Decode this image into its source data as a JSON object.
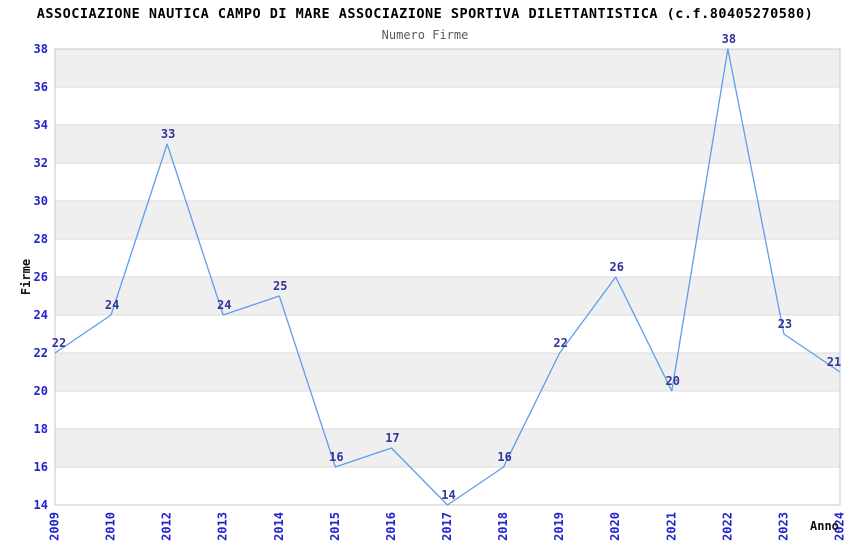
{
  "chart_data": {
    "type": "line",
    "title": "ASSOCIAZIONE NAUTICA CAMPO DI MARE ASSOCIAZIONE SPORTIVA DILETTANTISTICA (c.f.80405270580)",
    "subtitle": "Numero Firme",
    "xlabel": "Anno",
    "ylabel": "Firme",
    "categories": [
      "2009",
      "2010",
      "2012",
      "2013",
      "2014",
      "2015",
      "2016",
      "2017",
      "2018",
      "2019",
      "2020",
      "2021",
      "2022",
      "2023",
      "2024"
    ],
    "series": [
      {
        "name": "Numero Firme",
        "values": [
          22,
          24,
          33,
          24,
          25,
          16,
          17,
          14,
          16,
          22,
          26,
          20,
          38,
          23,
          21
        ]
      }
    ],
    "point_labels": [
      "22",
      "24",
      "33",
      "24",
      "25",
      "16",
      "17",
      "14",
      "16",
      "22",
      "26",
      "20",
      "38",
      "23",
      "21"
    ],
    "ylim": [
      14,
      38
    ],
    "yticks": [
      14,
      16,
      18,
      20,
      22,
      24,
      26,
      28,
      30,
      32,
      34,
      36,
      38
    ],
    "ytick_step": 2,
    "grid": "horizontal-bands-alternating",
    "legend_position": "none",
    "colors": {
      "line": "#5f9ee8",
      "tick_label": "#2323cb",
      "point_label": "#34349b",
      "band_alt": "#efefef",
      "band_base": "#ffffff",
      "gridline": "#dbdbdb",
      "plot_border": "#c8c8c8",
      "title": "#000000",
      "subtitle": "#5a5a5a",
      "axis_title": "#111111",
      "background": "#ffffff"
    }
  }
}
